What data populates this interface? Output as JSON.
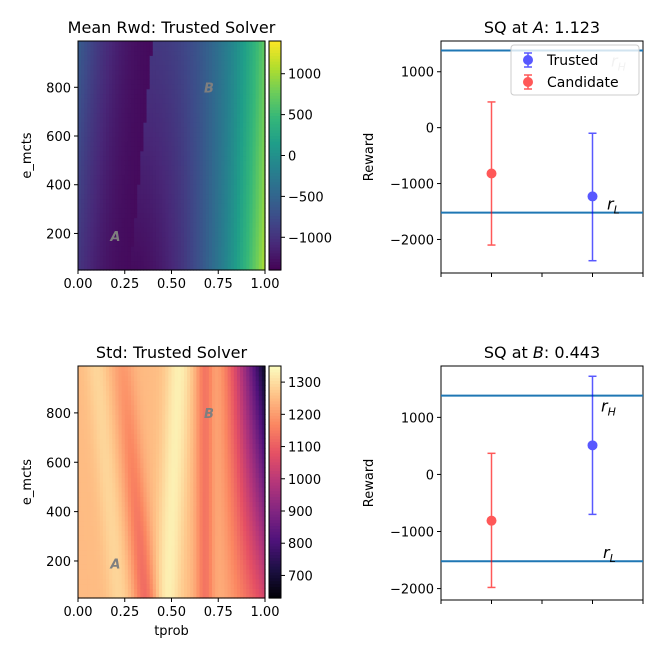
{
  "chart_data": [
    {
      "id": "heat_mean",
      "type": "heatmap",
      "title": "Mean Rwd: Trusted Solver",
      "xlabel": "",
      "ylabel": "e_mcts",
      "xlim": [
        0,
        1
      ],
      "ylim": [
        50,
        990
      ],
      "xticks": [
        "0.00",
        "0.25",
        "0.50",
        "0.75",
        "1.00"
      ],
      "yticks": [
        "200",
        "400",
        "600",
        "800"
      ],
      "colormap": "viridis",
      "color_range": [
        -1400,
        1400
      ],
      "colorbar_ticks": [
        "1000",
        "500",
        "0",
        "−500",
        "−1000"
      ],
      "points": [
        {
          "label": "A",
          "x": 0.2,
          "y": 190
        },
        {
          "label": "B",
          "x": 0.7,
          "y": 800
        }
      ]
    },
    {
      "id": "sq_a",
      "type": "scatter",
      "title_prefix": "SQ at ",
      "title_var": "A",
      "title_suffix": ": 1.123",
      "ylabel": "Reward",
      "ylim": [
        -2600,
        1550
      ],
      "yticks": [
        "1000",
        "0",
        "−1000",
        "−2000"
      ],
      "reference_lines": [
        {
          "name": "r_H",
          "label": "r",
          "sub": "H",
          "y": 1380
        },
        {
          "name": "r_L",
          "label": "r",
          "sub": "L",
          "y": -1520
        }
      ],
      "series": [
        {
          "name": "Trusted",
          "color": "#0000ff",
          "x": 0.75,
          "y": -1230,
          "err_low": -2380,
          "err_high": -100
        },
        {
          "name": "Candidate",
          "color": "#ff0000",
          "x": 0.25,
          "y": -820,
          "err_low": -2100,
          "err_high": 460
        }
      ],
      "legend": "top-right"
    },
    {
      "id": "heat_std",
      "type": "heatmap",
      "title": "Std: Trusted Solver",
      "xlabel": "tprob",
      "ylabel": "e_mcts",
      "xlim": [
        0,
        1
      ],
      "ylim": [
        50,
        990
      ],
      "xticks": [
        "0.00",
        "0.25",
        "0.50",
        "0.75",
        "1.00"
      ],
      "yticks": [
        "200",
        "400",
        "600",
        "800"
      ],
      "colormap": "magma",
      "color_range": [
        630,
        1350
      ],
      "colorbar_ticks": [
        "1300",
        "1200",
        "1100",
        "1000",
        "900",
        "800",
        "700"
      ],
      "points": [
        {
          "label": "A",
          "x": 0.2,
          "y": 190
        },
        {
          "label": "B",
          "x": 0.7,
          "y": 800
        }
      ]
    },
    {
      "id": "sq_b",
      "type": "scatter",
      "title_prefix": "SQ at ",
      "title_var": "B",
      "title_suffix": ": 0.443",
      "ylabel": "Reward",
      "ylim": [
        -2200,
        1900
      ],
      "yticks": [
        "1000",
        "0",
        "−1000",
        "−2000"
      ],
      "reference_lines": [
        {
          "name": "r_H",
          "label": "r",
          "sub": "H",
          "y": 1380
        },
        {
          "name": "r_L",
          "label": "r",
          "sub": "L",
          "y": -1520
        }
      ],
      "series": [
        {
          "name": "Trusted",
          "color": "#0000ff",
          "x": 0.75,
          "y": 510,
          "err_low": -700,
          "err_high": 1720
        },
        {
          "name": "Candidate",
          "color": "#ff0000",
          "x": 0.25,
          "y": -810,
          "err_low": -1980,
          "err_high": 370
        }
      ]
    }
  ]
}
